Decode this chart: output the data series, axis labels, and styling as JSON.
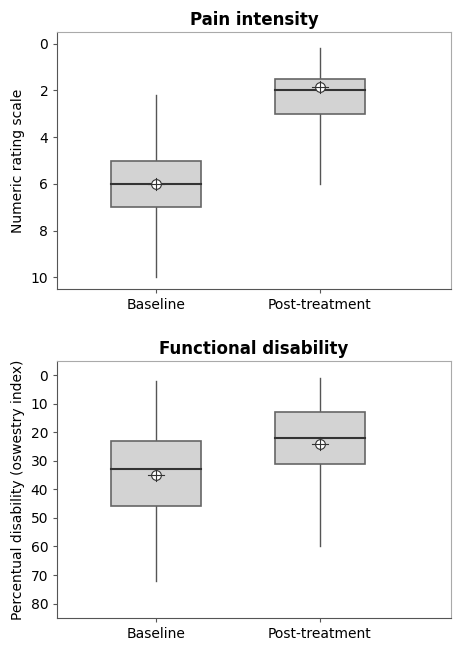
{
  "pain": {
    "title": "Pain intensity",
    "ylabel": "Numeric rating scale",
    "ylim": [
      10.5,
      -0.5
    ],
    "yticks": [
      0,
      2,
      4,
      6,
      8,
      10
    ],
    "yticklabels": [
      "0",
      "2",
      "4",
      "6",
      "8",
      "10"
    ],
    "categories": [
      "Baseline",
      "Post-treatment"
    ],
    "boxes": [
      {
        "q1": 5.0,
        "median": 6.0,
        "q3": 7.0,
        "whislo": 2.2,
        "whishi": 10.0,
        "mean": 6.0
      },
      {
        "q1": 1.5,
        "median": 2.0,
        "q3": 3.0,
        "whislo": 0.2,
        "whishi": 6.0,
        "mean": 1.85
      }
    ]
  },
  "disability": {
    "title": "Functional disability",
    "ylabel": "Percentual disability (oswestry index)",
    "ylim": [
      85,
      -5
    ],
    "yticks": [
      0,
      10,
      20,
      30,
      40,
      50,
      60,
      70,
      80
    ],
    "yticklabels": [
      "0",
      "10",
      "20",
      "30",
      "40",
      "50",
      "60",
      "70",
      "80"
    ],
    "categories": [
      "Baseline",
      "Post-treatment"
    ],
    "boxes": [
      {
        "q1": 23.0,
        "median": 33.0,
        "q3": 46.0,
        "whislo": 2.0,
        "whishi": 72.0,
        "mean": 35.0
      },
      {
        "q1": 13.0,
        "median": 22.0,
        "q3": 31.0,
        "whislo": 1.0,
        "whishi": 60.0,
        "mean": 24.0
      }
    ]
  },
  "box_color": "#d3d3d3",
  "box_edgecolor": "#666666",
  "whisker_color": "#555555",
  "median_color": "#333333",
  "mean_marker_size": 7,
  "mean_facecolor": "white",
  "mean_edgecolor": "#333333",
  "background_color": "#ffffff",
  "title_fontsize": 12,
  "label_fontsize": 10,
  "tick_fontsize": 10,
  "box_width": 0.55,
  "positions": [
    1,
    2
  ],
  "xlim": [
    0.4,
    2.8
  ]
}
